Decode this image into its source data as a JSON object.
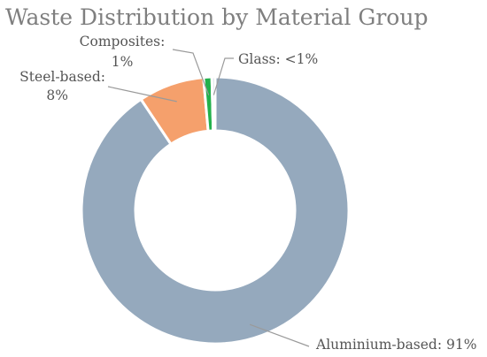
{
  "chart_data": {
    "type": "pie",
    "variant": "donut",
    "title": "Waste Distribution by Material Group",
    "slices": [
      {
        "label": "Aluminium-based",
        "value": 91,
        "value_text": "91%",
        "color": "#95a9bd"
      },
      {
        "label": "Steel-based",
        "value": 8,
        "value_text": "8%",
        "color": "#f5a06c"
      },
      {
        "label": "Composites",
        "value": 1,
        "value_text": "1%",
        "color": "#22b14c"
      },
      {
        "label": "Glass",
        "value": 0.4,
        "value_text": "<1%",
        "color": "#c9d3dd"
      }
    ],
    "legend": "none",
    "data_labels": "outside with leader lines"
  }
}
